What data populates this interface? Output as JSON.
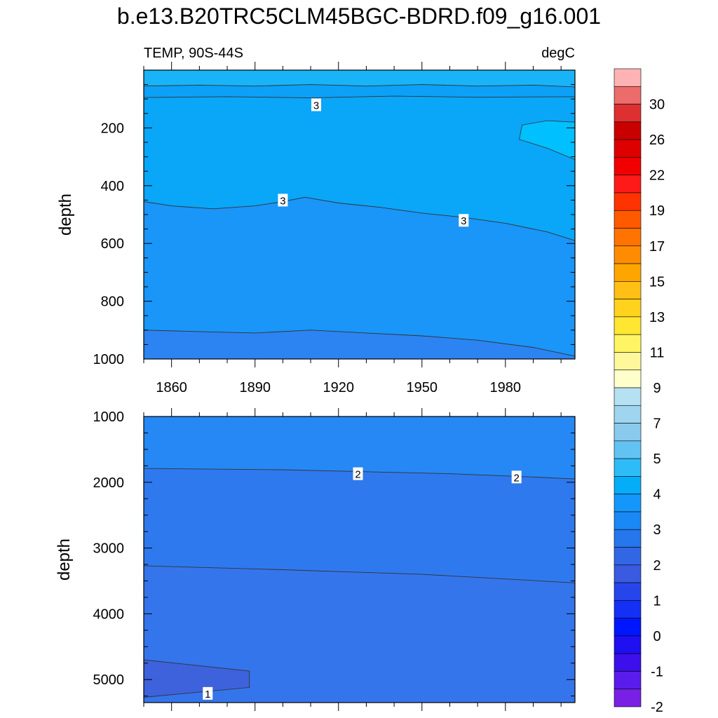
{
  "title": "b.e13.B20TRC5CLM45BGC-BDRD.f09_g16.001",
  "chart_data": [
    {
      "type": "heatmap",
      "panel": "top",
      "left_label": "TEMP, 90S-44S",
      "right_label": "degC",
      "ylabel": "depth",
      "xlim": [
        1850,
        2005
      ],
      "ylim": [
        1000,
        0
      ],
      "x_ticks": [
        1860,
        1890,
        1920,
        1950,
        1980
      ],
      "y_ticks": [
        200,
        400,
        600,
        800,
        1000
      ],
      "contours": [
        {
          "level": 3.5,
          "points": [
            [
              1850,
              55
            ],
            [
              1870,
              52
            ],
            [
              1890,
              55
            ],
            [
              1910,
              50
            ],
            [
              1930,
              55
            ],
            [
              1950,
              50
            ],
            [
              1970,
              55
            ],
            [
              1990,
              52
            ],
            [
              2005,
              58
            ]
          ]
        },
        {
          "level": 3,
          "points": [
            [
              1850,
              95
            ],
            [
              1880,
              92
            ],
            [
              1910,
              96
            ],
            [
              1940,
              90
            ],
            [
              1970,
              94
            ],
            [
              2005,
              92
            ]
          ]
        },
        {
          "level": 3,
          "points": [
            [
              1850,
              455
            ],
            [
              1860,
              470
            ],
            [
              1875,
              480
            ],
            [
              1890,
              470
            ],
            [
              1900,
              455
            ],
            [
              1908,
              440
            ],
            [
              1920,
              460
            ],
            [
              1935,
              475
            ],
            [
              1950,
              495
            ],
            [
              1965,
              510
            ],
            [
              1980,
              530
            ],
            [
              1995,
              560
            ],
            [
              2005,
              590
            ]
          ]
        },
        {
          "level": 2.5,
          "points": [
            [
              1850,
              900
            ],
            [
              1870,
              905
            ],
            [
              1890,
              910
            ],
            [
              1910,
              900
            ],
            [
              1930,
              910
            ],
            [
              1950,
              920
            ],
            [
              1970,
              935
            ],
            [
              1990,
              960
            ],
            [
              2005,
              990
            ]
          ]
        },
        {
          "level": 4,
          "points": [
            [
              2005,
              180
            ],
            [
              1995,
              175
            ],
            [
              1986,
              190
            ],
            [
              1985,
              240
            ],
            [
              1995,
              270
            ],
            [
              2005,
              310
            ]
          ]
        }
      ],
      "contour_labels": [
        {
          "text": "3",
          "x": 1912,
          "y": 120
        },
        {
          "text": "3",
          "x": 1900,
          "y": 450
        },
        {
          "text": "3",
          "x": 1965,
          "y": 520
        }
      ]
    },
    {
      "type": "heatmap",
      "panel": "bottom",
      "ylabel": "depth",
      "xlim": [
        1850,
        2005
      ],
      "ylim": [
        5350,
        1000
      ],
      "y_ticks": [
        1000,
        2000,
        3000,
        4000,
        5000
      ],
      "contours": [
        {
          "level": 2,
          "points": [
            [
              1850,
              1790
            ],
            [
              1900,
              1810
            ],
            [
              1930,
              1840
            ],
            [
              1960,
              1870
            ],
            [
              1990,
              1920
            ],
            [
              2005,
              1950
            ]
          ]
        },
        {
          "level": 1.5,
          "points": [
            [
              1850,
              3270
            ],
            [
              1900,
              3330
            ],
            [
              1950,
              3400
            ],
            [
              1980,
              3470
            ],
            [
              2005,
              3530
            ]
          ]
        },
        {
          "level": 1,
          "points": [
            [
              1850,
              4700
            ],
            [
              1888,
              4870
            ],
            [
              1888,
              5120
            ],
            [
              1850,
              5270
            ]
          ]
        }
      ],
      "contour_labels": [
        {
          "text": "2",
          "x": 1927,
          "y": 1870
        },
        {
          "text": "2",
          "x": 1984,
          "y": 1920
        },
        {
          "text": "1",
          "x": 1873,
          "y": 5210
        }
      ]
    }
  ],
  "colorbar": {
    "colors": [
      "#fdb3b3",
      "#ec6b6b",
      "#dd3030",
      "#c80000",
      "#de0000",
      "#f00000",
      "#ff1a1a",
      "#ff3300",
      "#ff5a00",
      "#ff7300",
      "#ff8c00",
      "#ffa500",
      "#ffbf14",
      "#ffd21e",
      "#ffe632",
      "#fff564",
      "#fff89a",
      "#ffffcc",
      "#b5e1f2",
      "#9fd5ee",
      "#8acbed",
      "#62c3f3",
      "#2ebcf6",
      "#05adf8",
      "#1497fb",
      "#1a88f5",
      "#2676ec",
      "#3167e4",
      "#3a5ae0",
      "#2646ec",
      "#1430f5",
      "#0016ff",
      "#1e10f0",
      "#3c10ea",
      "#5a1cea",
      "#7820e4"
    ],
    "labels": [
      {
        "index": 2,
        "text": "30"
      },
      {
        "index": 4,
        "text": "26"
      },
      {
        "index": 6,
        "text": "22"
      },
      {
        "index": 8,
        "text": "19"
      },
      {
        "index": 10,
        "text": "17"
      },
      {
        "index": 12,
        "text": "15"
      },
      {
        "index": 14,
        "text": "13"
      },
      {
        "index": 16,
        "text": "11"
      },
      {
        "index": 18,
        "text": "9"
      },
      {
        "index": 20,
        "text": "7"
      },
      {
        "index": 22,
        "text": "5"
      },
      {
        "index": 24,
        "text": "4"
      },
      {
        "index": 26,
        "text": "3"
      },
      {
        "index": 28,
        "text": "2"
      },
      {
        "index": 30,
        "text": "1"
      },
      {
        "index": 32,
        "text": "0"
      },
      {
        "index": 34,
        "text": "-1"
      },
      {
        "index": 36,
        "text": "-2"
      }
    ]
  }
}
